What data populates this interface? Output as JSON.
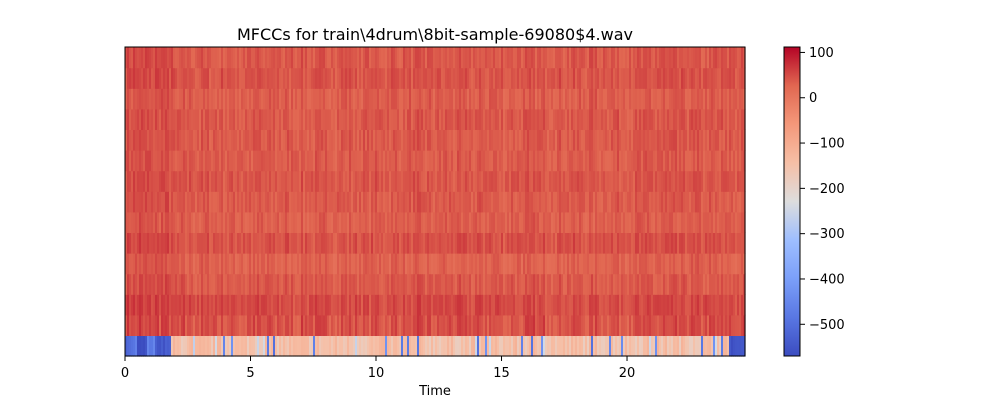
{
  "chart_data": {
    "type": "heatmap",
    "title": "MFCCs for train\\4drum\\8bit-sample-69080$4.wav",
    "xlabel": "Time",
    "ylabel": "",
    "xlim": [
      0,
      24.7
    ],
    "x_ticks": [
      {
        "value": 0,
        "label": "0"
      },
      {
        "value": 5,
        "label": "5"
      },
      {
        "value": 10,
        "label": "10"
      },
      {
        "value": 15,
        "label": "15"
      },
      {
        "value": 20,
        "label": "20"
      }
    ],
    "n_coefficients": 15,
    "n_frames": 1063,
    "colormap": "coolwarm",
    "color_range": [
      -570,
      112
    ],
    "colorbar_ticks": [
      {
        "value": 100,
        "label": "100"
      },
      {
        "value": 0,
        "label": "0"
      },
      {
        "value": -100,
        "label": "−100"
      },
      {
        "value": -200,
        "label": "−200"
      },
      {
        "value": -300,
        "label": "−300"
      },
      {
        "value": -400,
        "label": "−400"
      },
      {
        "value": -500,
        "label": "−500"
      }
    ],
    "row_means": [
      -150,
      45,
      52,
      38,
      30,
      45,
      34,
      38,
      42,
      36,
      38,
      40,
      34,
      44,
      40
    ],
    "c0_segments": [
      {
        "t_start": 0,
        "t_end": 0.2,
        "value": -520
      },
      {
        "t_start": 0.2,
        "t_end": 0.45,
        "value": -480
      },
      {
        "t_start": 0.45,
        "t_end": 0.9,
        "value": -560
      },
      {
        "t_start": 0.9,
        "t_end": 1.2,
        "value": -470
      },
      {
        "t_start": 1.2,
        "t_end": 1.85,
        "value": -540
      },
      {
        "t_start": 1.85,
        "t_end": 24.1,
        "value": -150
      },
      {
        "t_start": 24.1,
        "t_end": 24.7,
        "value": -550
      }
    ]
  }
}
